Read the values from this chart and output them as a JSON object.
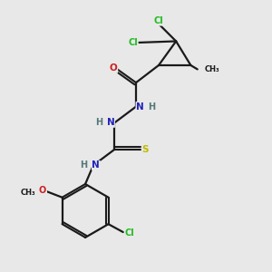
{
  "background_color": "#e8e8e8",
  "bond_color": "#1a1a1a",
  "atom_colors": {
    "C": "#1a1a1a",
    "N": "#2222bb",
    "O": "#cc2020",
    "S": "#bbbb00",
    "Cl": "#22bb22",
    "H": "#557777"
  }
}
